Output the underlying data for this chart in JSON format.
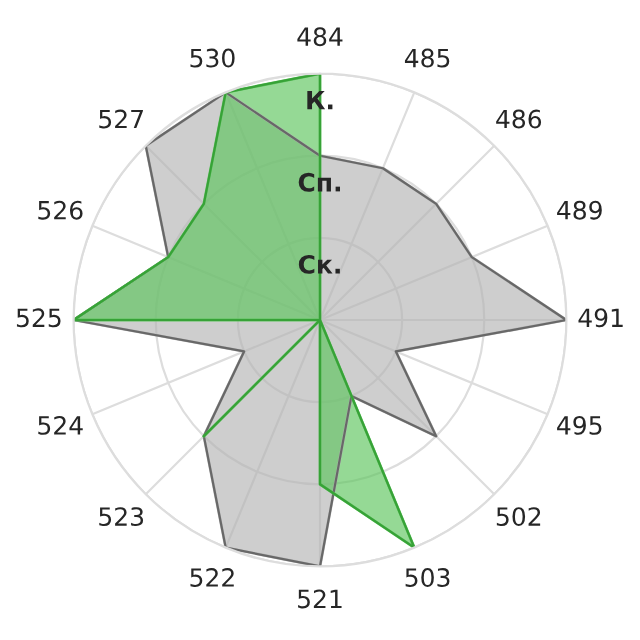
{
  "chart_data": {
    "type": "radar",
    "categories": [
      "484",
      "485",
      "486",
      "489",
      "491",
      "495",
      "502",
      "503",
      "521",
      "522",
      "523",
      "524",
      "525",
      "526",
      "527",
      "530"
    ],
    "series": [
      {
        "color": "#b4b4b4",
        "values": [
          2,
          2,
          2,
          2,
          3,
          1,
          2,
          1,
          3,
          3,
          2,
          1,
          3,
          2,
          3,
          3
        ]
      },
      {
        "color": "#5cc45c",
        "values": [
          3,
          0,
          0,
          0,
          0,
          0,
          0,
          3,
          2,
          0,
          2,
          0,
          3,
          2,
          2,
          3
        ]
      }
    ],
    "ylim": [
      0,
      3
    ],
    "yticks": [
      {
        "value": 1,
        "label": "Ск."
      },
      {
        "value": 2,
        "label": "Сп."
      },
      {
        "value": 3,
        "label": "К."
      }
    ],
    "grid": true
  }
}
